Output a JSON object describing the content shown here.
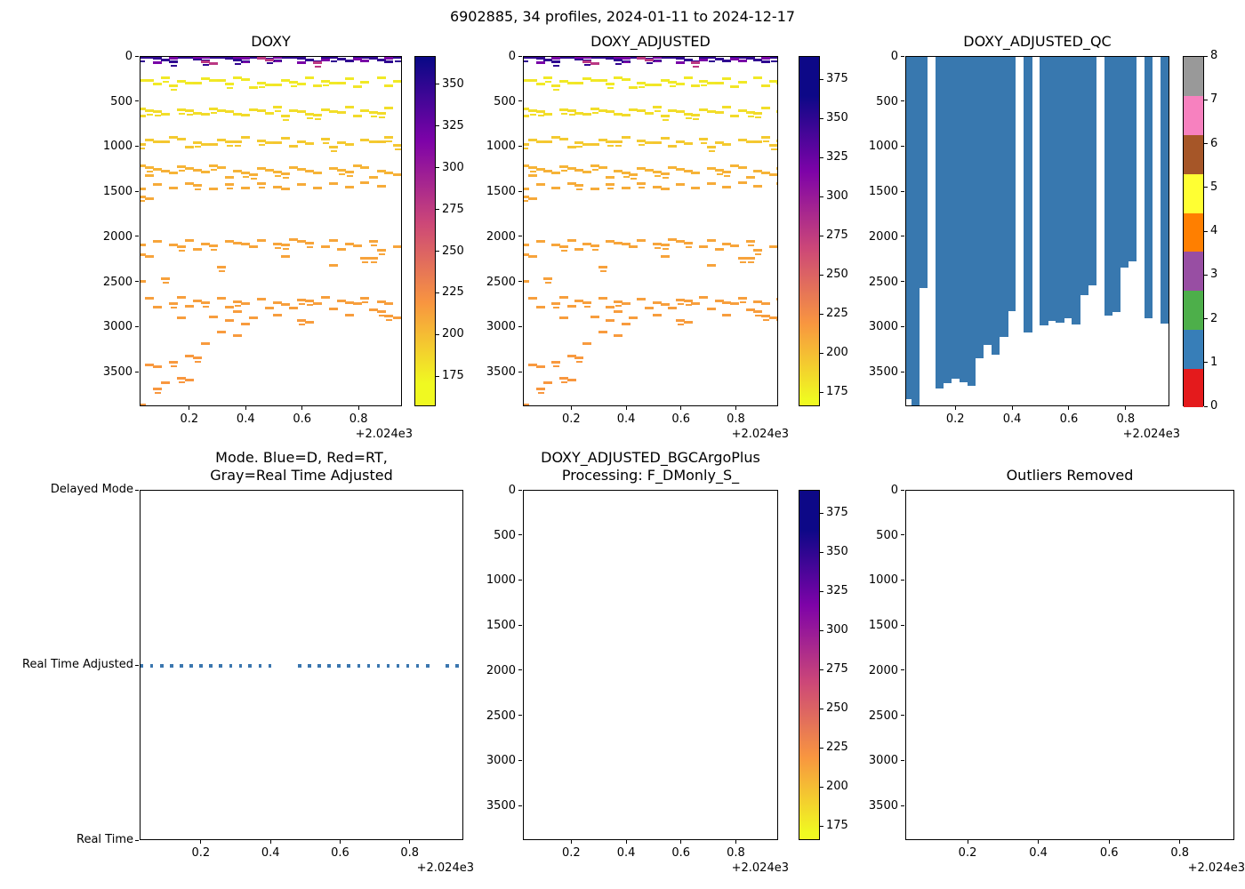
{
  "suptitle": "6902885, 34 profiles, 2024-01-11 to 2024-12-17",
  "colors": {
    "background": "#ffffff",
    "axis": "#000000",
    "qc_fill": "#3878af",
    "mode_dot": "#3a76af",
    "qc_flag_colors": [
      "#e41a1c",
      "#377eb8",
      "#4daf4a",
      "#984ea3",
      "#ff7f00",
      "#ffff33",
      "#a65628",
      "#f781bf",
      "#999999"
    ]
  },
  "chart_data": {
    "shared": {
      "xticks": [
        0.2,
        0.4,
        0.6,
        0.8
      ],
      "xlim": [
        0.024,
        0.954
      ],
      "x_offset_label": "+2.024e3",
      "depth_yticks": [
        0,
        500,
        1000,
        1500,
        2000,
        2500,
        3000,
        3500
      ],
      "depth_ylim": [
        0,
        3884
      ],
      "profiles_x": [
        0.028,
        0.056,
        0.085,
        0.113,
        0.141,
        0.17,
        0.198,
        0.226,
        0.254,
        0.283,
        0.311,
        0.339,
        0.368,
        0.396,
        0.424,
        0.453,
        0.481,
        0.509,
        0.538,
        0.566,
        0.594,
        0.622,
        0.651,
        0.679,
        0.707,
        0.736,
        0.764,
        0.792,
        0.82,
        0.849,
        0.877,
        0.905,
        0.934,
        0.962
      ],
      "colormap_stops": [
        [
          170,
          "#f0f921"
        ],
        [
          219,
          "#f89540"
        ],
        [
          267,
          "#cc4778"
        ],
        [
          316,
          "#7e03a8"
        ],
        [
          365,
          "#0d0887"
        ]
      ],
      "dash_rows": [
        {
          "d": 8,
          "v": 350,
          "i": [
            0,
            1,
            2,
            3,
            4,
            5,
            6,
            7,
            8,
            9,
            10,
            11,
            12,
            13,
            14,
            15,
            16,
            17,
            18,
            19,
            20,
            21,
            22,
            23,
            24,
            25,
            26,
            27,
            28,
            29,
            30,
            31,
            32,
            33
          ]
        },
        {
          "d": 18,
          "v": 318,
          "i": [
            2,
            4,
            7,
            8,
            12,
            13,
            17,
            20,
            23,
            27,
            28,
            31
          ]
        },
        {
          "d": 26,
          "v": 278,
          "i": [
            8,
            9,
            15,
            16,
            22
          ]
        },
        {
          "d": 270,
          "v": 178,
          "i": [
            0,
            2,
            3,
            5,
            6,
            8,
            9,
            11,
            12,
            13,
            15,
            16,
            18,
            19,
            20,
            21,
            23,
            24,
            26,
            28,
            30,
            32,
            33
          ]
        },
        {
          "d": 300,
          "v": 180,
          "i": [
            1,
            4,
            7,
            10,
            14,
            17,
            22,
            25,
            27,
            31
          ]
        },
        {
          "d": 590,
          "v": 183,
          "i": [
            0,
            1,
            3,
            5,
            7,
            9,
            10,
            12,
            14,
            16,
            17,
            19,
            21,
            23,
            24,
            26,
            28,
            29,
            31,
            33
          ]
        },
        {
          "d": 630,
          "v": 185,
          "i": [
            0,
            2,
            6,
            8,
            11,
            13,
            15,
            18,
            20,
            22,
            25,
            27,
            30
          ]
        },
        {
          "d": 925,
          "v": 193,
          "i": [
            1,
            2,
            4,
            5,
            7,
            8,
            10,
            11,
            13,
            15,
            16,
            18,
            20,
            21,
            23,
            25,
            26,
            28,
            29,
            31,
            33
          ]
        },
        {
          "d": 960,
          "v": 195,
          "i": [
            0,
            3,
            6,
            9,
            12,
            17,
            19,
            24,
            30,
            32
          ]
        },
        {
          "d": 1245,
          "v": 204,
          "i": [
            0,
            1,
            2,
            4,
            5,
            6,
            8,
            9,
            10,
            12,
            13,
            15,
            16,
            17,
            19,
            20,
            22,
            24,
            25,
            27,
            28,
            30,
            31,
            33
          ]
        },
        {
          "d": 1290,
          "v": 206,
          "i": [
            1,
            3,
            7,
            11,
            14,
            18,
            21,
            26,
            29,
            32
          ]
        },
        {
          "d": 1415,
          "v": 208,
          "i": [
            0,
            2,
            4,
            6,
            7,
            9,
            11,
            13,
            15,
            17,
            18,
            20,
            22,
            24,
            26,
            28,
            30,
            33
          ]
        },
        {
          "d": 1560,
          "v": 209,
          "i": [
            0,
            1
          ]
        },
        {
          "d": 2060,
          "v": 211,
          "i": [
            2,
            4,
            5,
            6,
            8,
            9,
            11,
            12,
            14,
            15,
            17,
            19,
            20,
            21,
            23,
            24,
            26,
            27,
            29,
            32
          ]
        },
        {
          "d": 2095,
          "v": 211,
          "i": [
            0,
            7,
            13,
            18,
            25,
            30
          ]
        },
        {
          "d": 2165,
          "v": 212,
          "i": [
            0,
            1
          ]
        },
        {
          "d": 2235,
          "v": 212,
          "i": [
            18,
            28
          ]
        },
        {
          "d": 2270,
          "v": 212,
          "i": [
            24,
            29
          ]
        },
        {
          "d": 2350,
          "v": 213,
          "i": [
            10
          ]
        },
        {
          "d": 2480,
          "v": 213,
          "i": [
            0,
            3
          ]
        },
        {
          "d": 2700,
          "v": 214,
          "i": [
            1,
            4,
            5,
            7,
            8,
            10,
            12,
            13,
            15,
            17,
            18,
            20,
            22,
            23,
            25,
            26,
            28,
            30,
            31,
            33
          ]
        },
        {
          "d": 2745,
          "v": 214,
          "i": [
            2,
            6,
            11,
            16,
            21,
            27
          ]
        },
        {
          "d": 2820,
          "v": 215,
          "i": [
            12,
            19,
            24,
            29,
            30
          ]
        },
        {
          "d": 2900,
          "v": 215,
          "i": [
            5,
            9,
            14,
            17,
            21,
            26,
            31,
            32
          ]
        },
        {
          "d": 2950,
          "v": 216,
          "i": [
            11,
            13,
            20,
            33
          ]
        },
        {
          "d": 3060,
          "v": 216,
          "i": [
            10,
            12
          ]
        },
        {
          "d": 3180,
          "v": 216,
          "i": [
            8
          ]
        },
        {
          "d": 3320,
          "v": 217,
          "i": [
            6,
            7
          ]
        },
        {
          "d": 3390,
          "v": 217,
          "i": [
            1,
            2,
            4
          ]
        },
        {
          "d": 3600,
          "v": 218,
          "i": [
            3,
            5,
            6
          ]
        },
        {
          "d": 3650,
          "v": 218,
          "i": [
            2
          ]
        },
        {
          "d": 3820,
          "v": 219,
          "i": [
            0
          ]
        }
      ],
      "qc_max_depths": [
        3800,
        3870,
        2560,
        null,
        3680,
        3620,
        3570,
        3610,
        3650,
        3340,
        3190,
        3300,
        3110,
        2820,
        null,
        3060,
        null,
        2980,
        2930,
        2950,
        2900,
        2970,
        2640,
        2530,
        null,
        2870,
        2830,
        2340,
        2270,
        null,
        2900,
        null,
        2960,
        2980
      ],
      "mode_levels": [
        "Delayed Mode",
        "Real Time Adjusted",
        "Real Time"
      ],
      "mode_dot_level": "Real Time Adjusted",
      "mode_missing_idx": [
        14,
        15,
        30
      ]
    },
    "charts": [
      {
        "title": "DOXY",
        "type": "dashes",
        "yaxis": "depth",
        "colorbar": {
          "kind": "gradient",
          "vmin": 157,
          "vmax": 367,
          "ticks": [
            175,
            200,
            225,
            250,
            275,
            300,
            325,
            350
          ]
        }
      },
      {
        "title": "DOXY_ADJUSTED",
        "type": "dashes",
        "yaxis": "depth",
        "colorbar": {
          "kind": "gradient",
          "vmin": 166,
          "vmax": 390,
          "ticks": [
            175,
            200,
            225,
            250,
            275,
            300,
            325,
            350,
            375
          ]
        }
      },
      {
        "title": "DOXY_ADJUSTED_QC",
        "type": "qc",
        "yaxis": "depth",
        "colorbar": {
          "kind": "discrete",
          "ticks": [
            0,
            1,
            2,
            3,
            4,
            5,
            6,
            7,
            8
          ]
        }
      },
      {
        "title": "Mode. Blue=D, Red=RT,\nGray=Real Time Adjusted",
        "type": "mode",
        "yaxis": "mode"
      },
      {
        "title": "DOXY_ADJUSTED_BGCArgoPlus\nProcessing: F_DMonly_S_",
        "type": "empty",
        "yaxis": "depth",
        "colorbar": {
          "kind": "gradient",
          "vmin": 166,
          "vmax": 390,
          "ticks": [
            175,
            200,
            225,
            250,
            275,
            300,
            325,
            350,
            375
          ]
        }
      },
      {
        "title": "Outliers Removed",
        "type": "empty",
        "yaxis": "depth"
      }
    ]
  }
}
